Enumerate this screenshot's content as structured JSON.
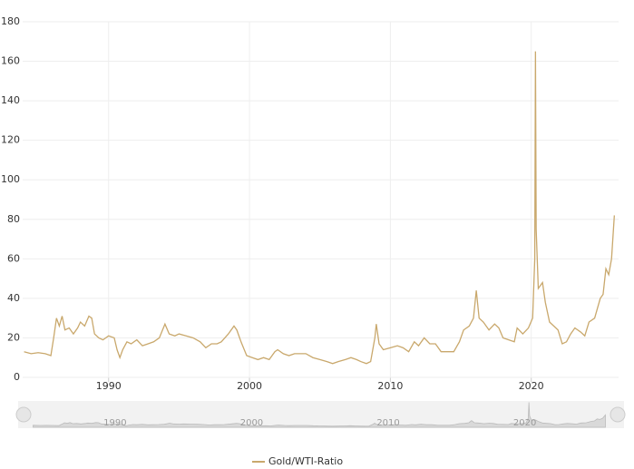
{
  "chart_data": {
    "type": "line",
    "xlim": [
      1983.9,
      2026.2
    ],
    "xticks": [
      1990,
      2000,
      2010,
      2020
    ],
    "ylim": [
      0,
      180
    ],
    "yticks": [
      0,
      20,
      40,
      60,
      80,
      100,
      120,
      140,
      160,
      180
    ],
    "grid": true,
    "legend": "bottom",
    "series": [
      {
        "name": "Gold/WTI-Ratio",
        "color": "#c9a86c",
        "x": [
          1984.0,
          1984.5,
          1985.0,
          1985.5,
          1985.9,
          1986.1,
          1986.3,
          1986.5,
          1986.7,
          1986.9,
          1987.2,
          1987.5,
          1987.8,
          1988.0,
          1988.3,
          1988.6,
          1988.8,
          1989.0,
          1989.3,
          1989.6,
          1990.0,
          1990.4,
          1990.6,
          1990.8,
          1991.0,
          1991.3,
          1991.6,
          1992.0,
          1992.4,
          1992.8,
          1993.2,
          1993.6,
          1994.0,
          1994.3,
          1994.7,
          1995.0,
          1995.5,
          1996.0,
          1996.5,
          1996.9,
          1997.3,
          1997.7,
          1998.0,
          1998.5,
          1998.9,
          1999.1,
          1999.4,
          1999.8,
          2000.2,
          2000.6,
          2001.0,
          2001.4,
          2001.8,
          2002.0,
          2002.4,
          2002.8,
          2003.2,
          2003.6,
          2004.0,
          2004.5,
          2005.0,
          2005.5,
          2005.9,
          2006.3,
          2006.8,
          2007.2,
          2007.6,
          2007.9,
          2008.3,
          2008.6,
          2008.9,
          2009.0,
          2009.2,
          2009.5,
          2010.0,
          2010.5,
          2010.9,
          2011.3,
          2011.7,
          2012.0,
          2012.4,
          2012.8,
          2013.2,
          2013.6,
          2014.0,
          2014.5,
          2014.9,
          2015.2,
          2015.6,
          2015.9,
          2016.1,
          2016.3,
          2016.6,
          2017.0,
          2017.4,
          2017.7,
          2018.0,
          2018.4,
          2018.8,
          2019.0,
          2019.4,
          2019.8,
          2020.1,
          2020.25,
          2020.3,
          2020.35,
          2020.5,
          2020.8,
          2021.0,
          2021.3,
          2021.6,
          2021.9,
          2022.2,
          2022.5,
          2022.8,
          2023.1,
          2023.5,
          2023.8,
          2024.1,
          2024.5,
          2024.9,
          2025.1,
          2025.3,
          2025.5,
          2025.7,
          2025.9
        ],
        "values": [
          13,
          12,
          12.5,
          12,
          11,
          20,
          30,
          26,
          31,
          24,
          25,
          22,
          25,
          28,
          26,
          31,
          30,
          22,
          20,
          19,
          21,
          20,
          14,
          10,
          14,
          18,
          17,
          19,
          16,
          17,
          18,
          20,
          27,
          22,
          21,
          22,
          21,
          20,
          18,
          15,
          17,
          17,
          18,
          22,
          26,
          24,
          18,
          11,
          10,
          9,
          10,
          9,
          13,
          14,
          12,
          11,
          12,
          12,
          12,
          10,
          9,
          8,
          7,
          8,
          9,
          10,
          9,
          8,
          7,
          8,
          20,
          27,
          17,
          14,
          15,
          16,
          15,
          13,
          18,
          16,
          20,
          17,
          17,
          13,
          13,
          13,
          18,
          24,
          26,
          30,
          44,
          30,
          28,
          24,
          27,
          25,
          20,
          19,
          18,
          25,
          22,
          25,
          30,
          60,
          165,
          75,
          45,
          48,
          38,
          28,
          26,
          24,
          17,
          18,
          22,
          25,
          23,
          21,
          28,
          30,
          40,
          42,
          55,
          52,
          60,
          82
        ]
      }
    ]
  }
}
